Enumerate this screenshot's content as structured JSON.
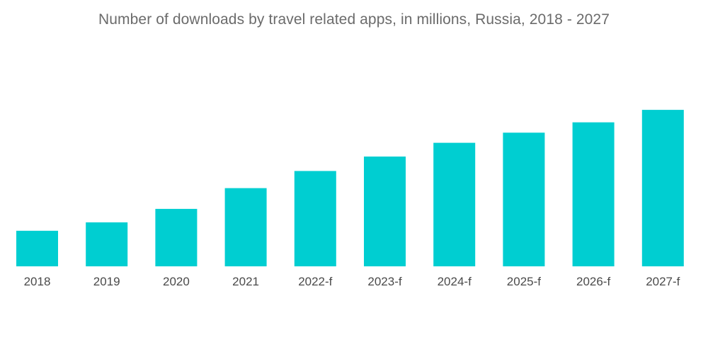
{
  "chart_data": {
    "type": "bar",
    "title": "Number of downloads by travel related apps, in millions, Russia,  2018 - 2027",
    "xlabel": "",
    "ylabel": "",
    "categories": [
      "2018",
      "2019",
      "2020",
      "2021",
      "2022-f",
      "2023-f",
      "2024-f",
      "2025-f",
      "2026-f",
      "2027-f"
    ],
    "values": [
      10.6,
      13.1,
      17.1,
      23.3,
      28.4,
      32.7,
      36.8,
      39.8,
      42.9,
      46.6
    ],
    "ylim": [
      0,
      50
    ],
    "grid": false,
    "legend": "none",
    "bar_color": "#00ced1"
  }
}
